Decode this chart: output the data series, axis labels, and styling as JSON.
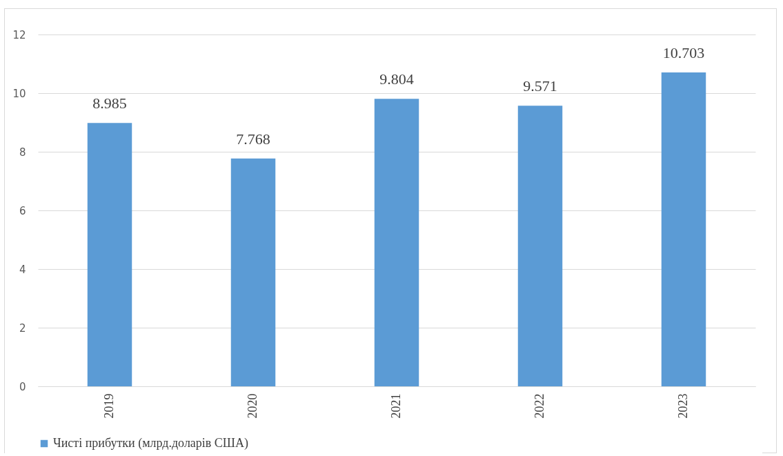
{
  "chart_data": {
    "type": "bar",
    "categories": [
      "2019",
      "2020",
      "2021",
      "2022",
      "2023"
    ],
    "series": [
      {
        "name": "Чисті прибутки (млрд.доларів США)",
        "color": "#5b9bd5",
        "values": [
          8.985,
          7.768,
          9.804,
          9.571,
          10.703
        ]
      }
    ],
    "ylim": [
      0,
      12
    ],
    "yticks": [
      0,
      2,
      4,
      6,
      8,
      10,
      12
    ],
    "grid": "y",
    "legend": "bottom",
    "data_labels": true
  }
}
